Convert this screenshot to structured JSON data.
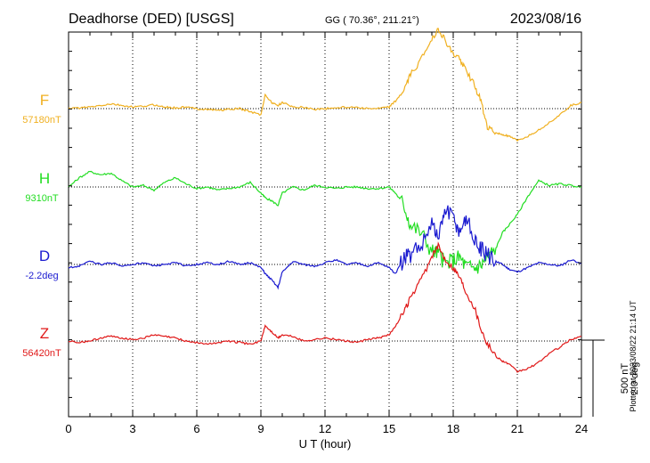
{
  "header": {
    "station": "Deadhorse (DED)  [USGS]",
    "coords": "GG ( 70.36°, 211.21°)",
    "date": "2023/08/16"
  },
  "footer": {
    "plotted_at": "Plotted at 2023/08/22 21:14 UT"
  },
  "colors": {
    "F": "#f0b020",
    "H": "#22dd22",
    "D": "#1a1ad0",
    "Z": "#e01818"
  },
  "chart_data": {
    "type": "line",
    "xlabel": "U T (hour)",
    "xlim": [
      0,
      24
    ],
    "x_ticks": [
      0,
      3,
      6,
      9,
      12,
      15,
      18,
      21,
      24
    ],
    "scale": {
      "amplitude": "500 nT",
      "angle": "2.0 deg"
    },
    "grid": true,
    "series": [
      {
        "name": "F",
        "baseline_label": "57180nT",
        "x": [
          0,
          0.5,
          1,
          1.5,
          2,
          2.5,
          3,
          3.5,
          4,
          4.5,
          5,
          5.5,
          6,
          6.5,
          7,
          7.5,
          8,
          8.5,
          9,
          9.2,
          9.5,
          9.8,
          10,
          10.5,
          11,
          11.5,
          12,
          12.5,
          13,
          13.5,
          14,
          14.5,
          15,
          15.3,
          15.7,
          16,
          16.5,
          17,
          17.3,
          17.6,
          18,
          18.3,
          18.6,
          19,
          19.3,
          19.6,
          20,
          20.3,
          20.6,
          21,
          21.5,
          22,
          22.5,
          23,
          23.5,
          24
        ],
        "y": [
          0,
          5,
          10,
          20,
          30,
          20,
          10,
          15,
          25,
          10,
          5,
          10,
          0,
          -5,
          -10,
          -5,
          0,
          -20,
          -40,
          90,
          40,
          20,
          40,
          10,
          10,
          -5,
          0,
          5,
          10,
          10,
          0,
          0,
          10,
          50,
          120,
          220,
          320,
          460,
          520,
          450,
          350,
          330,
          250,
          150,
          50,
          -120,
          -160,
          -170,
          -180,
          -210,
          -180,
          -140,
          -90,
          -40,
          20,
          40
        ]
      },
      {
        "name": "H",
        "baseline_label": "9310nT",
        "x": [
          0,
          0.5,
          1,
          1.5,
          2,
          2.5,
          3,
          3.5,
          4,
          4.5,
          5,
          5.5,
          6,
          6.5,
          7,
          7.5,
          8,
          8.5,
          9,
          9.2,
          9.5,
          9.8,
          10,
          10.5,
          11,
          11.5,
          12,
          12.5,
          13,
          13.5,
          14,
          14.5,
          15,
          15.3,
          15.7,
          16,
          16.5,
          17,
          17.3,
          17.6,
          18,
          18.3,
          18.6,
          19,
          19.3,
          19.6,
          20,
          20.3,
          20.6,
          21,
          21.5,
          22,
          22.5,
          23,
          23.5,
          24
        ],
        "y": [
          0,
          60,
          100,
          80,
          90,
          40,
          0,
          10,
          -20,
          30,
          60,
          20,
          -10,
          0,
          -20,
          -10,
          0,
          30,
          -40,
          -70,
          -90,
          -120,
          -40,
          0,
          -20,
          10,
          0,
          -10,
          0,
          0,
          -10,
          -10,
          0,
          -40,
          -120,
          -250,
          -300,
          -420,
          -430,
          -500,
          -480,
          -460,
          -520,
          -530,
          -510,
          -460,
          -400,
          -300,
          -250,
          -180,
          -60,
          40,
          10,
          20,
          10,
          0
        ]
      },
      {
        "name": "D",
        "baseline_label": "-2.2deg",
        "x": [
          0,
          0.5,
          1,
          1.5,
          2,
          2.5,
          3,
          3.5,
          4,
          4.5,
          5,
          5.5,
          6,
          6.5,
          7,
          7.5,
          8,
          8.5,
          9,
          9.2,
          9.5,
          9.8,
          10,
          10.5,
          11,
          11.5,
          12,
          12.5,
          13,
          13.5,
          14,
          14.5,
          15,
          15.3,
          15.7,
          16,
          16.5,
          17,
          17.3,
          17.6,
          18,
          18.3,
          18.6,
          19,
          19.3,
          19.6,
          20,
          20.3,
          20.6,
          21,
          21.5,
          22,
          22.5,
          23,
          23.5,
          24
        ],
        "y": [
          -20,
          -10,
          20,
          0,
          10,
          -10,
          0,
          10,
          -10,
          0,
          10,
          -10,
          0,
          10,
          0,
          20,
          0,
          10,
          -20,
          -60,
          -100,
          -150,
          -50,
          20,
          0,
          -10,
          10,
          30,
          0,
          10,
          -10,
          10,
          -20,
          -60,
          40,
          60,
          120,
          280,
          150,
          350,
          300,
          200,
          320,
          140,
          100,
          60,
          20,
          0,
          -30,
          -50,
          -20,
          10,
          0,
          -10,
          30,
          10
        ]
      },
      {
        "name": "Z",
        "baseline_label": "56420nT",
        "x": [
          0,
          0.5,
          1,
          1.5,
          2,
          2.5,
          3,
          3.5,
          4,
          4.5,
          5,
          5.5,
          6,
          6.5,
          7,
          7.5,
          8,
          8.5,
          9,
          9.2,
          9.5,
          9.8,
          10,
          10.5,
          11,
          11.5,
          12,
          12.5,
          13,
          13.5,
          14,
          14.5,
          15,
          15.3,
          15.7,
          16,
          16.5,
          17,
          17.3,
          17.6,
          18,
          18.3,
          18.6,
          19,
          19.3,
          19.6,
          20,
          20.3,
          20.6,
          21,
          21.5,
          22,
          22.5,
          23,
          23.5,
          24
        ],
        "y": [
          0,
          -10,
          0,
          20,
          30,
          20,
          10,
          20,
          40,
          30,
          20,
          0,
          -10,
          -20,
          -10,
          0,
          -10,
          -20,
          0,
          100,
          60,
          20,
          40,
          30,
          0,
          10,
          20,
          10,
          0,
          -10,
          10,
          20,
          40,
          100,
          190,
          280,
          400,
          550,
          620,
          540,
          480,
          420,
          320,
          220,
          80,
          -20,
          -100,
          -130,
          -150,
          -200,
          -180,
          -140,
          -80,
          -40,
          10,
          30
        ]
      }
    ]
  }
}
